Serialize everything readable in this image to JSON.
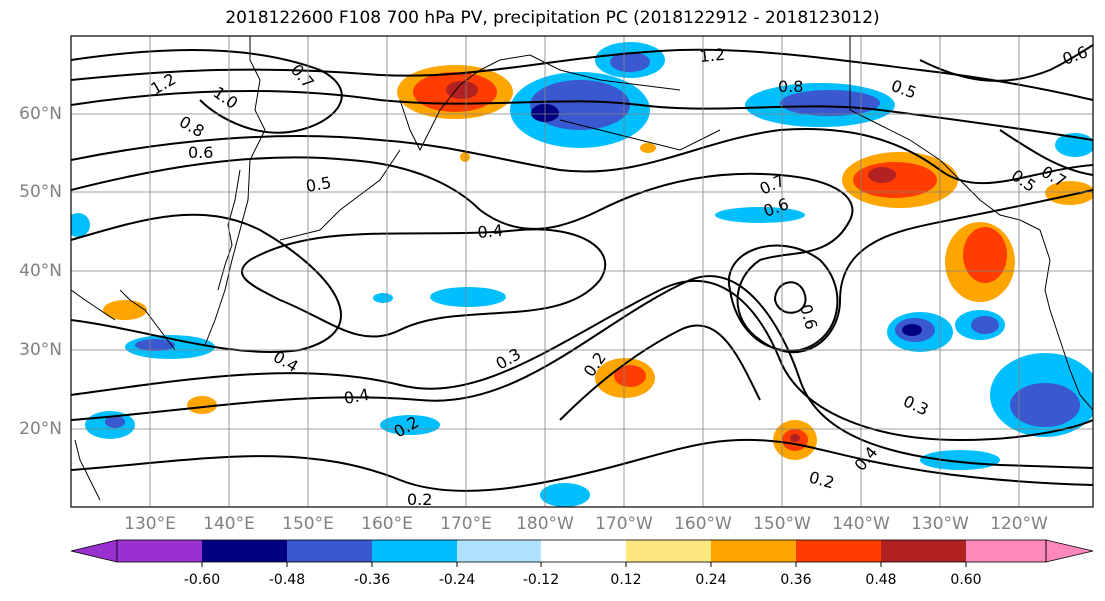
{
  "title": "2018122600 F108 700 hPa PV, precipitation PC (2018122912 - 2018123012)",
  "lat_labels": [
    "60°N",
    "50°N",
    "40°N",
    "30°N",
    "20°N"
  ],
  "lon_labels": [
    "130°E",
    "140°E",
    "150°E",
    "160°E",
    "170°E",
    "180°W",
    "170°W",
    "160°W",
    "150°W",
    "140°W",
    "130°W",
    "120°W"
  ],
  "contour_labels": [
    "1.2",
    "1.0",
    "0.8",
    "0.7",
    "0.6",
    "0.5",
    "0.4",
    "0.4",
    "0.4",
    "0.3",
    "0.3",
    "0.2",
    "0.2",
    "0.2",
    "0.2",
    "0.8",
    "0.6",
    "0.7",
    "0.6",
    "0.5",
    "0.4",
    "1.2",
    "0.5",
    "0.7",
    "0.6"
  ],
  "colorbar": {
    "ticks": [
      "-0.60",
      "-0.48",
      "-0.36",
      "-0.24",
      "-0.12",
      "0.12",
      "0.24",
      "0.36",
      "0.48",
      "0.60"
    ],
    "colors": [
      "#9b30d0",
      "#000080",
      "#3a58cf",
      "#00bfff",
      "#b0e2ff",
      "#ffffff",
      "#ffe780",
      "#ffa500",
      "#ff3d00",
      "#b22222",
      "#ff88bb"
    ]
  }
}
